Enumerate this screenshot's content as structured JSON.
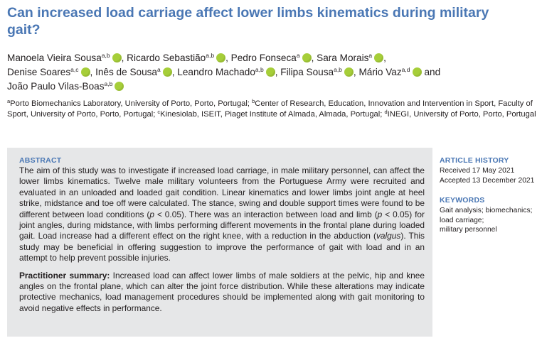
{
  "title": "Can increased load carriage affect lower limbs kinematics during military gait?",
  "authors": [
    {
      "name": "Manoela Vieira Sousa",
      "sup": "a,b",
      "sep": ","
    },
    {
      "name": "Ricardo Sebastião",
      "sup": "a,b",
      "sep": ","
    },
    {
      "name": "Pedro Fonseca",
      "sup": "a",
      "sep": ","
    },
    {
      "name": "Sara Morais",
      "sup": "a",
      "sep": ","
    },
    {
      "name": "Denise Soares",
      "sup": "a,c",
      "sep": ","
    },
    {
      "name": "Inês de Sousa",
      "sup": "a",
      "sep": ","
    },
    {
      "name": "Leandro Machado",
      "sup": "a,b",
      "sep": ","
    },
    {
      "name": "Filipa Sousa",
      "sup": "a,b",
      "sep": ","
    },
    {
      "name": "Mário Vaz",
      "sup": "a,d",
      "sep": "and"
    },
    {
      "name": "João Paulo Vilas-Boas",
      "sup": "a,b",
      "sep": ""
    }
  ],
  "affiliations": [
    {
      "sup": "a",
      "text": "Porto Biomechanics Laboratory, University of Porto, Porto, Portugal;"
    },
    {
      "sup": "b",
      "text": "Center of Research, Education, Innovation and Intervention in Sport, Faculty of Sport, University of Porto, Porto, Portugal;"
    },
    {
      "sup": "c",
      "text": "Kinesiolab, ISEIT, Piaget Institute of Almada, Almada, Portugal;"
    },
    {
      "sup": "d",
      "text": "INEGI, University of Porto, Porto, Portugal"
    }
  ],
  "abstract": {
    "heading": "ABSTRACT",
    "text_parts": [
      {
        "t": "The aim of this study was to investigate if increased load carriage, in male military personnel, can affect the lower limbs kinematics. Twelve male military volunteers from the Portuguese Army were recruited and evaluated in an unloaded and loaded gait condition. Linear kinematics and lower limbs joint angle at heel strike, midstance and toe off were calculated. The stance, swing and double support times were found to be different between load conditions (",
        "i": false
      },
      {
        "t": "p",
        "i": true
      },
      {
        "t": " < 0.05). There was an interaction between load and limb (",
        "i": false
      },
      {
        "t": "p",
        "i": true
      },
      {
        "t": " < 0.05) for joint angles, during midstance, with limbs performing different movements in the frontal plane during loaded gait. Load increase had a different effect on the right knee, with a reduction in the abduction (",
        "i": false
      },
      {
        "t": "valgus",
        "i": true
      },
      {
        "t": "). This study may be beneficial in offering suggestion to improve the performance of gait with load and in an attempt to help prevent possible injuries.",
        "i": false
      }
    ],
    "practitioner_label": "Practitioner summary:",
    "practitioner_text": " Increased load can affect lower limbs of male soldiers at the pelvic, hip and knee angles on the frontal plane, which can alter the joint force distribution. While these alterations may indicate protective mechanics, load management procedures should be implemented along with gait monitoring to avoid negative effects in performance."
  },
  "article_history": {
    "heading": "ARTICLE HISTORY",
    "received": "Received 17 May 2021",
    "accepted": "Accepted 13 December 2021"
  },
  "keywords": {
    "heading": "KEYWORDS",
    "items": [
      "Gait analysis; biomechanics;",
      "load carriage;",
      "military personnel"
    ]
  },
  "icons": {
    "orcid": "orcid-icon",
    "orcid_color": "#a6ce39"
  },
  "colors": {
    "accent": "#4a77b4",
    "abstract_bg": "#e6e7e8"
  }
}
